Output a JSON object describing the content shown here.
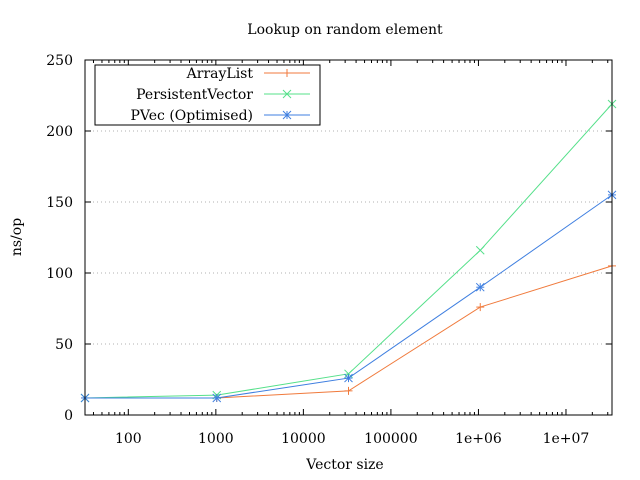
{
  "chart_data": {
    "type": "line",
    "title": "Lookup on random element",
    "xlabel": "Vector size",
    "ylabel": "ns/op",
    "x_scale": "log",
    "xlim": [
      32,
      33554432
    ],
    "ylim": [
      0,
      250
    ],
    "x_ticks": [
      {
        "value": 100,
        "label": "100"
      },
      {
        "value": 1000,
        "label": "1000"
      },
      {
        "value": 10000,
        "label": "10000"
      },
      {
        "value": 100000,
        "label": "100000"
      },
      {
        "value": 1000000,
        "label": "1e+06"
      },
      {
        "value": 10000000,
        "label": "1e+07"
      }
    ],
    "y_ticks": [
      {
        "value": 0,
        "label": "0"
      },
      {
        "value": 50,
        "label": "50"
      },
      {
        "value": 100,
        "label": "100"
      },
      {
        "value": 150,
        "label": "150"
      },
      {
        "value": 200,
        "label": "200"
      },
      {
        "value": 250,
        "label": "250"
      }
    ],
    "grid": "horizontal dotted",
    "legend_position": "top-left",
    "series": [
      {
        "name": "ArrayList",
        "color": "#f07a3c",
        "marker": "plus",
        "points": [
          [
            32,
            12
          ],
          [
            1024,
            12
          ],
          [
            32768,
            17
          ],
          [
            1048576,
            76
          ],
          [
            33554432,
            105
          ]
        ]
      },
      {
        "name": "PersistentVector",
        "color": "#55e08a",
        "marker": "cross",
        "points": [
          [
            32,
            12
          ],
          [
            1024,
            14
          ],
          [
            32768,
            29
          ],
          [
            1048576,
            116
          ],
          [
            33554432,
            219
          ]
        ]
      },
      {
        "name": "PVec (Optimised)",
        "color": "#3f7fe0",
        "marker": "star",
        "points": [
          [
            32,
            12
          ],
          [
            1024,
            12
          ],
          [
            32768,
            26
          ],
          [
            1048576,
            90
          ],
          [
            33554432,
            155
          ]
        ]
      }
    ]
  }
}
